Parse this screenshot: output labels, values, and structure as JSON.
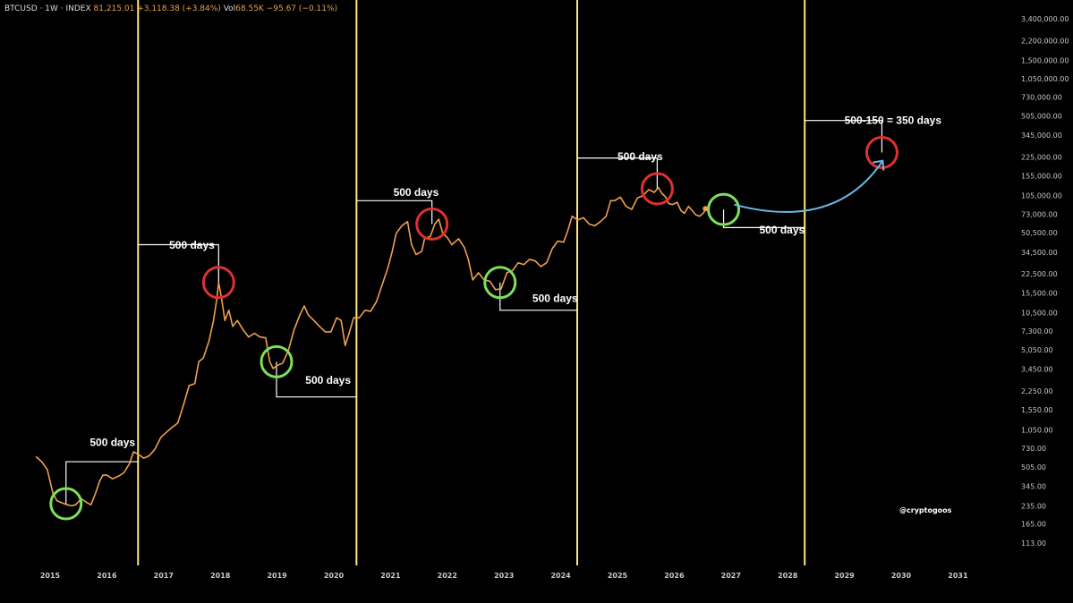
{
  "header": {
    "symbol": "BTCUSD · 1W · INDEX",
    "price": "81,215.01",
    "change": "+3,118.38 (+3.84%)",
    "vol_label": "Vol",
    "vol": "68.55K",
    "vol_change": "−95.67 (−0.11%)"
  },
  "watermark": "@cryptogoos",
  "colors": {
    "background": "#000000",
    "price_line": "#f0a04b",
    "cycle_line": "#ffe680",
    "peak_circle": "#e03030",
    "bottom_circle": "#7de05a",
    "projection_arrow": "#6ab8e8",
    "bracket": "#ffffff"
  },
  "chart_data": {
    "type": "line",
    "x_axis": {
      "ticks": [
        "2015",
        "2016",
        "2017",
        "2018",
        "2019",
        "2020",
        "2021",
        "2022",
        "2023",
        "2024",
        "2025",
        "2026",
        "2027",
        "2028",
        "2029",
        "2030",
        "2031"
      ]
    },
    "y_axis": {
      "scale": "log",
      "ticks": [
        "3,400,000.00",
        "2,200,000.00",
        "1,500,000.00",
        "1,050,000.00",
        "730,000.00",
        "505,000.00",
        "345,000.00",
        "225,000.00",
        "155,000.00",
        "105,000.00",
        "73,000.00",
        "50,500.00",
        "34,500.00",
        "22,500.00",
        "15,500.00",
        "10,500.00",
        "7,300.00",
        "5,050.00",
        "3,450.00",
        "2,250.00",
        "1,550.00",
        "1,050.00",
        "730.00",
        "505.00",
        "345.00",
        "235.00",
        "165.00",
        "113.00"
      ],
      "tick_values": [
        3400000,
        2200000,
        1500000,
        1050000,
        730000,
        505000,
        345000,
        225000,
        155000,
        105000,
        73000,
        50500,
        34500,
        22500,
        15500,
        10500,
        7300,
        5050,
        3450,
        2250,
        1550,
        1050,
        730,
        505,
        345,
        235,
        165,
        113
      ]
    },
    "series": [
      {
        "points": [
          [
            2014.75,
            620
          ],
          [
            2014.85,
            560
          ],
          [
            2014.95,
            480
          ],
          [
            2015.05,
            300
          ],
          [
            2015.12,
            260
          ],
          [
            2015.2,
            250
          ],
          [
            2015.3,
            240
          ],
          [
            2015.38,
            235
          ],
          [
            2015.45,
            240
          ],
          [
            2015.55,
            270
          ],
          [
            2015.65,
            250
          ],
          [
            2015.72,
            240
          ],
          [
            2015.8,
            300
          ],
          [
            2015.87,
            380
          ],
          [
            2015.93,
            430
          ],
          [
            2016.0,
            430
          ],
          [
            2016.1,
            400
          ],
          [
            2016.2,
            420
          ],
          [
            2016.3,
            450
          ],
          [
            2016.4,
            540
          ],
          [
            2016.47,
            680
          ],
          [
            2016.55,
            650
          ],
          [
            2016.65,
            600
          ],
          [
            2016.75,
            630
          ],
          [
            2016.85,
            720
          ],
          [
            2016.95,
            900
          ],
          [
            2017.05,
            1000
          ],
          [
            2017.15,
            1100
          ],
          [
            2017.25,
            1200
          ],
          [
            2017.35,
            1700
          ],
          [
            2017.45,
            2500
          ],
          [
            2017.55,
            2600
          ],
          [
            2017.62,
            4000
          ],
          [
            2017.7,
            4300
          ],
          [
            2017.8,
            6000
          ],
          [
            2017.88,
            9000
          ],
          [
            2017.94,
            14000
          ],
          [
            2017.97,
            19000
          ],
          [
            2018.02,
            14000
          ],
          [
            2018.08,
            9000
          ],
          [
            2018.15,
            11000
          ],
          [
            2018.22,
            8000
          ],
          [
            2018.3,
            9000
          ],
          [
            2018.4,
            7500
          ],
          [
            2018.5,
            6500
          ],
          [
            2018.6,
            7000
          ],
          [
            2018.7,
            6500
          ],
          [
            2018.8,
            6400
          ],
          [
            2018.87,
            4000
          ],
          [
            2018.93,
            3500
          ],
          [
            2019.0,
            3700
          ],
          [
            2019.1,
            3900
          ],
          [
            2019.2,
            5000
          ],
          [
            2019.3,
            7500
          ],
          [
            2019.4,
            10000
          ],
          [
            2019.48,
            12000
          ],
          [
            2019.55,
            10000
          ],
          [
            2019.65,
            9000
          ],
          [
            2019.75,
            8000
          ],
          [
            2019.85,
            7200
          ],
          [
            2019.95,
            7200
          ],
          [
            2020.05,
            9500
          ],
          [
            2020.13,
            9000
          ],
          [
            2020.2,
            5500
          ],
          [
            2020.27,
            7000
          ],
          [
            2020.35,
            9500
          ],
          [
            2020.45,
            9500
          ],
          [
            2020.55,
            11000
          ],
          [
            2020.65,
            10800
          ],
          [
            2020.75,
            13000
          ],
          [
            2020.85,
            18000
          ],
          [
            2020.95,
            25000
          ],
          [
            2021.03,
            35000
          ],
          [
            2021.1,
            50000
          ],
          [
            2021.2,
            58000
          ],
          [
            2021.3,
            63000
          ],
          [
            2021.37,
            40000
          ],
          [
            2021.45,
            33000
          ],
          [
            2021.55,
            35000
          ],
          [
            2021.6,
            45000
          ],
          [
            2021.7,
            47000
          ],
          [
            2021.78,
            60000
          ],
          [
            2021.85,
            66000
          ],
          [
            2021.92,
            50000
          ],
          [
            2022.0,
            46000
          ],
          [
            2022.08,
            40000
          ],
          [
            2022.2,
            45000
          ],
          [
            2022.3,
            38000
          ],
          [
            2022.37,
            30000
          ],
          [
            2022.45,
            20000
          ],
          [
            2022.55,
            23000
          ],
          [
            2022.65,
            20000
          ],
          [
            2022.75,
            19500
          ],
          [
            2022.85,
            16500
          ],
          [
            2022.95,
            16800
          ],
          [
            2023.05,
            23000
          ],
          [
            2023.15,
            24000
          ],
          [
            2023.25,
            28000
          ],
          [
            2023.35,
            27000
          ],
          [
            2023.45,
            30000
          ],
          [
            2023.55,
            29000
          ],
          [
            2023.65,
            26000
          ],
          [
            2023.75,
            28000
          ],
          [
            2023.85,
            37000
          ],
          [
            2023.95,
            43000
          ],
          [
            2024.05,
            42000
          ],
          [
            2024.12,
            52000
          ],
          [
            2024.2,
            70000
          ],
          [
            2024.3,
            65000
          ],
          [
            2024.4,
            68000
          ],
          [
            2024.5,
            60000
          ],
          [
            2024.6,
            58000
          ],
          [
            2024.7,
            63000
          ],
          [
            2024.8,
            70000
          ],
          [
            2024.88,
            95000
          ],
          [
            2024.95,
            95000
          ],
          [
            2025.05,
            102000
          ],
          [
            2025.15,
            85000
          ],
          [
            2025.25,
            80000
          ],
          [
            2025.35,
            100000
          ],
          [
            2025.45,
            105000
          ],
          [
            2025.55,
            118000
          ],
          [
            2025.65,
            112000
          ],
          [
            2025.72,
            123000
          ],
          [
            2025.78,
            110000
          ],
          [
            2025.85,
            102000
          ],
          [
            2025.9,
            90000
          ],
          [
            2025.97,
            88000
          ],
          [
            2026.05,
            92000
          ],
          [
            2026.12,
            78000
          ],
          [
            2026.18,
            74000
          ],
          [
            2026.25,
            85000
          ],
          [
            2026.3,
            80000
          ],
          [
            2026.38,
            72000
          ],
          [
            2026.45,
            70000
          ],
          [
            2026.52,
            75000
          ],
          [
            2026.55,
            81215
          ]
        ]
      }
    ],
    "cycle_lines": [
      "2016.55",
      "2020.4",
      "2024.29",
      "2028.3"
    ],
    "peak_markers": [
      [
        2017.97,
        19000
      ],
      [
        2021.73,
        60000
      ],
      [
        2025.7,
        120000
      ],
      [
        2029.66,
        245000
      ]
    ],
    "bottom_markers": [
      [
        2015.28,
        245
      ],
      [
        2018.99,
        4000
      ],
      [
        2022.93,
        19000
      ],
      [
        2026.87,
        80000
      ]
    ],
    "projection": {
      "from": [
        2026.9,
        82000
      ],
      "to": [
        2029.58,
        240000
      ]
    },
    "annotations": [
      {
        "text": "500 days",
        "x": 2015.7,
        "y": 760
      },
      {
        "text": "500 days",
        "x": 2017.1,
        "y": 37000
      },
      {
        "text": "500 days",
        "x": 2019.5,
        "y": 2600
      },
      {
        "text": "500 days",
        "x": 2021.05,
        "y": 104000
      },
      {
        "text": "500 days",
        "x": 2023.5,
        "y": 13000
      },
      {
        "text": "500 days",
        "x": 2025.0,
        "y": 210000
      },
      {
        "text": "500 days",
        "x": 2027.5,
        "y": 50000
      },
      {
        "text": "500-150 = 350 days",
        "x": 2029.0,
        "y": 430000
      }
    ]
  }
}
